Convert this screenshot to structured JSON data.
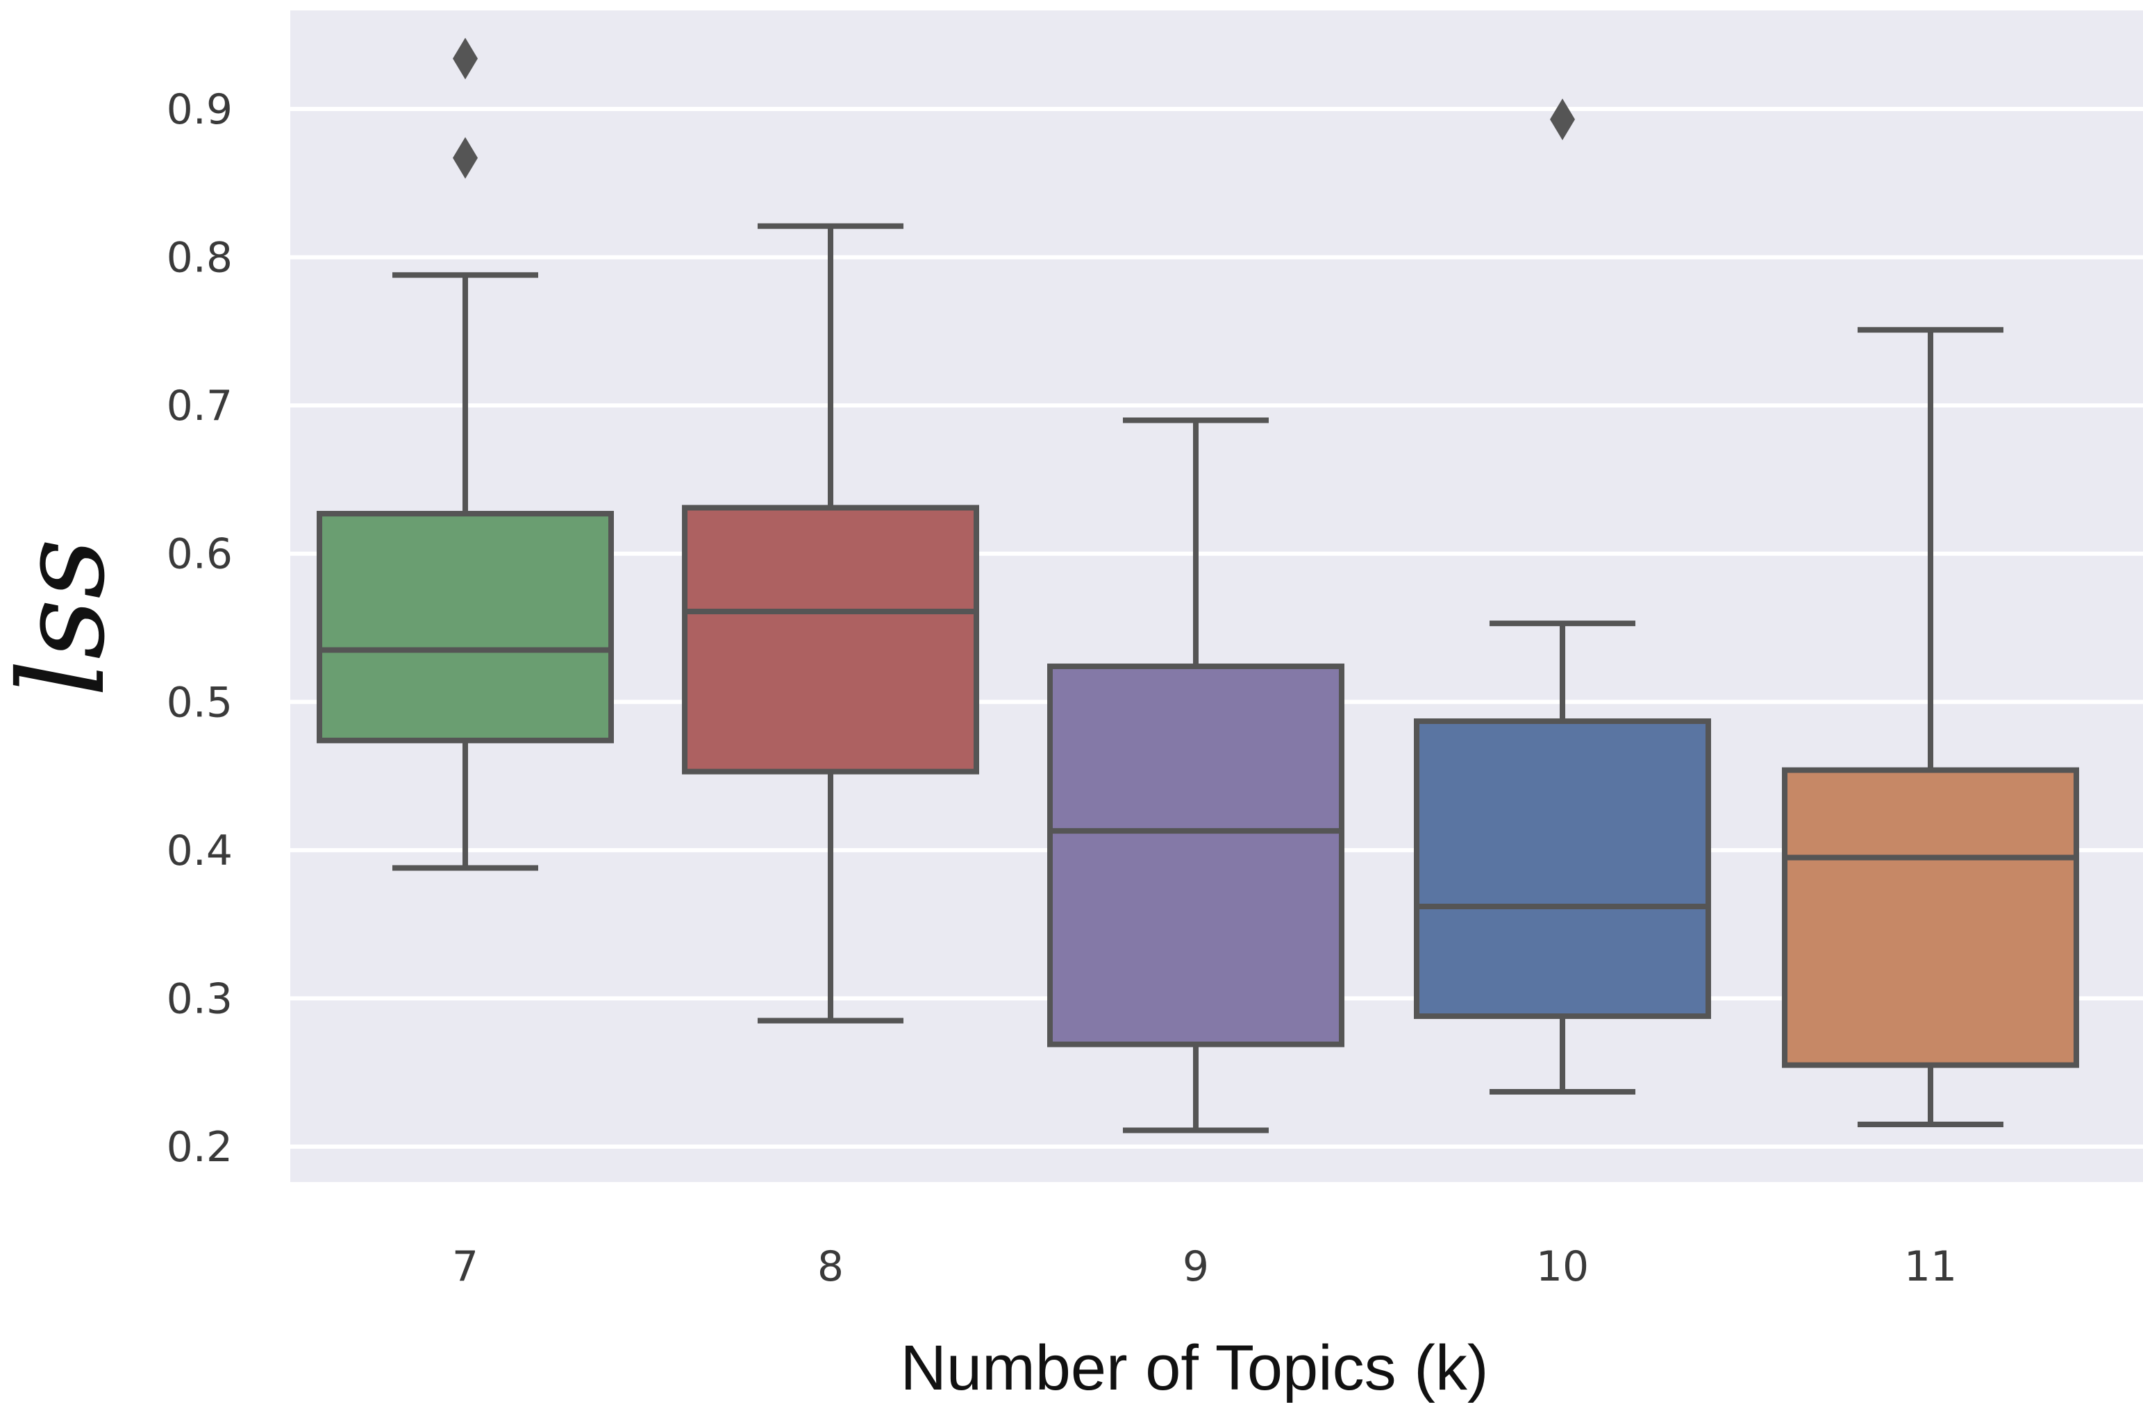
{
  "chart_data": {
    "type": "box",
    "xlabel": "Number of Topics (k)",
    "ylabel": "lss",
    "ylim": [
      0.175,
      0.97
    ],
    "yticks": [
      0.2,
      0.3,
      0.4,
      0.5,
      0.6,
      0.7,
      0.8,
      0.9
    ],
    "ytick_labels": [
      "0.2",
      "0.3",
      "0.4",
      "0.5",
      "0.6",
      "0.7",
      "0.8",
      "0.9"
    ],
    "categories": [
      "7",
      "8",
      "9",
      "10",
      "11"
    ],
    "boxes": [
      {
        "category": "7",
        "color": "#6a9e71",
        "whisker_low": 0.388,
        "q1": 0.474,
        "median": 0.535,
        "q3": 0.627,
        "whisker_high": 0.788,
        "outliers": [
          0.867,
          0.934
        ]
      },
      {
        "category": "8",
        "color": "#ad6161",
        "whisker_low": 0.285,
        "q1": 0.453,
        "median": 0.561,
        "q3": 0.631,
        "whisker_high": 0.821,
        "outliers": []
      },
      {
        "category": "9",
        "color": "#8479a7",
        "whisker_low": 0.211,
        "q1": 0.269,
        "median": 0.413,
        "q3": 0.524,
        "whisker_high": 0.69,
        "outliers": []
      },
      {
        "category": "10",
        "color": "#5a75a2",
        "whisker_low": 0.237,
        "q1": 0.288,
        "median": 0.362,
        "q3": 0.487,
        "whisker_high": 0.553,
        "outliers": [
          0.893
        ]
      },
      {
        "category": "11",
        "color": "#c68866",
        "whisker_low": 0.215,
        "q1": 0.255,
        "median": 0.395,
        "q3": 0.454,
        "whisker_high": 0.751,
        "outliers": []
      }
    ],
    "grid": true,
    "background": "#eaeaf2",
    "gridline_color": "#ffffff",
    "edge_color": "#555555"
  }
}
